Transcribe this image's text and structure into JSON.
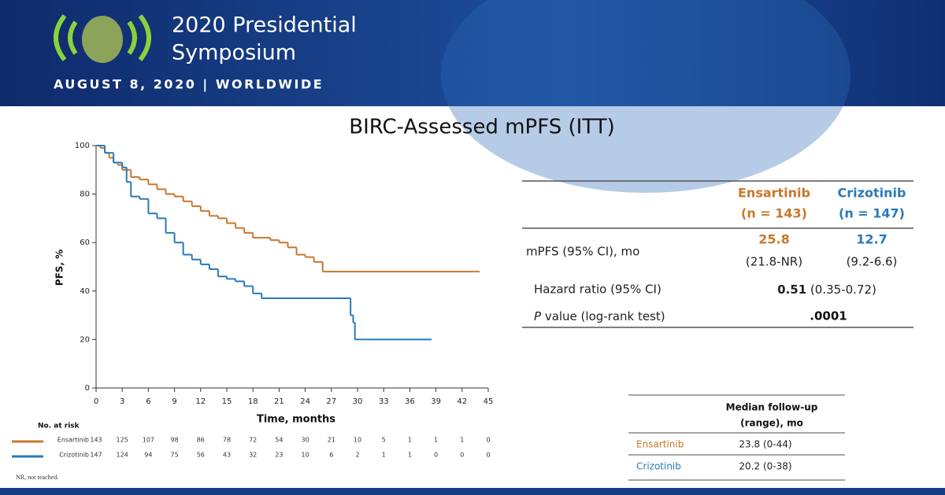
{
  "header": {
    "title_line1": "2020 Presidential",
    "title_line2": "Symposium",
    "subtitle": "AUGUST 8, 2020 | WORLDWIDE"
  },
  "chart_data": {
    "type": "line",
    "title": "BIRC-Assessed mPFS (ITT)",
    "xlabel": "Time, months",
    "ylabel": "PFS, %",
    "xlim": [
      0,
      45
    ],
    "ylim": [
      0,
      100
    ],
    "xticks": [
      0,
      3,
      6,
      9,
      12,
      15,
      18,
      21,
      24,
      27,
      30,
      33,
      36,
      39,
      42,
      45
    ],
    "yticks": [
      0,
      20,
      40,
      60,
      80,
      100
    ],
    "step": true,
    "series": [
      {
        "name": "Ensartinib",
        "color": "#c8782a",
        "x": [
          0,
          0.5,
          1,
          1.5,
          2,
          2.5,
          3,
          4,
          5,
          6,
          7,
          8,
          9,
          10,
          11,
          12,
          13,
          14,
          15,
          16,
          17,
          18,
          19,
          20,
          21,
          22,
          23,
          24,
          25,
          26,
          44
        ],
        "values": [
          100,
          99,
          97,
          95,
          93,
          92,
          90,
          87,
          86,
          84,
          82,
          80,
          79,
          77,
          75,
          73,
          71,
          70,
          68,
          66,
          64,
          62,
          62,
          61,
          60,
          58,
          55,
          54,
          52,
          48,
          48
        ]
      },
      {
        "name": "Crizotinib",
        "color": "#2a7ab8",
        "x": [
          0,
          1,
          2,
          3,
          3.5,
          4,
          5,
          6,
          7,
          8,
          9,
          10,
          11,
          12,
          13,
          14,
          15,
          16,
          17,
          18,
          19,
          29,
          29.2,
          29.5,
          29.7,
          38.5
        ],
        "values": [
          100,
          97,
          93,
          91,
          85,
          79,
          78,
          72,
          70,
          64,
          60,
          55,
          53,
          51,
          49,
          46,
          45,
          44,
          42,
          39,
          37,
          37,
          30,
          27,
          20,
          20
        ]
      }
    ]
  },
  "risk_table": {
    "title": "No. at risk",
    "rows": [
      {
        "name": "Ensartinib",
        "values": [
          143,
          125,
          107,
          98,
          86,
          78,
          72,
          54,
          30,
          21,
          10,
          5,
          1,
          1,
          1,
          0
        ]
      },
      {
        "name": "Crizotinib",
        "values": [
          147,
          124,
          94,
          75,
          56,
          43,
          32,
          23,
          10,
          6,
          2,
          1,
          1,
          0,
          0,
          0
        ]
      }
    ]
  },
  "results_table": {
    "columns": [
      {
        "name": "Ensartinib",
        "n": "(n = 143)"
      },
      {
        "name": "Crizotinib",
        "n": "(n = 147)"
      }
    ],
    "mpfs": {
      "label": "mPFS (95% CI), mo",
      "values": [
        "25.8",
        "12.7"
      ],
      "ci": [
        "(21.8-NR)",
        "(9.2-6.6)"
      ]
    },
    "hazard": {
      "label": "Hazard ratio (95% CI)",
      "value": "0.51",
      "ci": " (0.35-0.72)"
    },
    "pvalue": {
      "label_italic": "P",
      "label": " value (log-rank test)",
      "value": ".0001"
    }
  },
  "followup_table": {
    "header_line1": "Median follow-up",
    "header_line2": "(range), mo",
    "rows": [
      {
        "name": "Ensartinib",
        "value": "23.8 (0-44)"
      },
      {
        "name": "Crizotinib",
        "value": "20.2 (0-38)"
      }
    ]
  },
  "footnote": "NR, not reached."
}
